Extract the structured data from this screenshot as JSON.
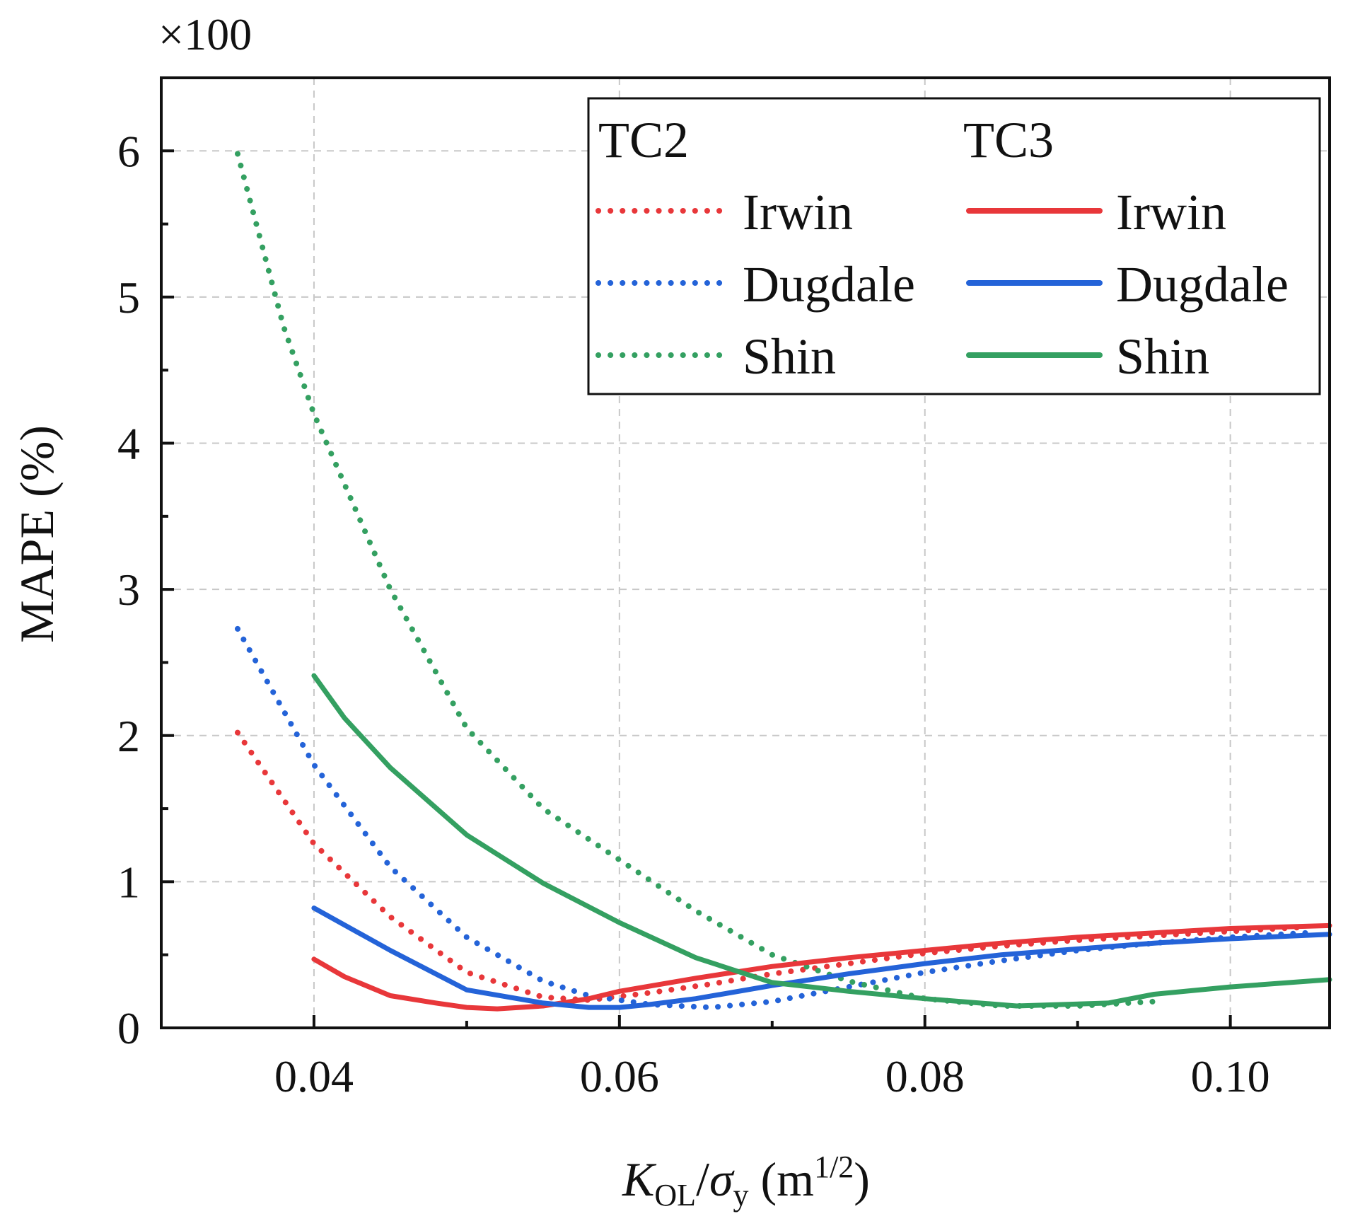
{
  "chart_data": {
    "type": "line",
    "title": "",
    "xlabel": {
      "italic_main": "K",
      "sub1": "OL",
      "slash": "/",
      "italic_sigma": "σ",
      "sub2": "y",
      "unit_open": " (m",
      "unit_sup": "1/2",
      "unit_close": ")"
    },
    "ylabel": "MAPE (%)",
    "y_multiplier_label": "×100",
    "xlim": [
      0.03,
      0.1065
    ],
    "ylim": [
      0,
      6.5
    ],
    "x_ticks": [
      0.04,
      0.06,
      0.08,
      0.1
    ],
    "x_tick_labels": [
      "0.04",
      "0.06",
      "0.08",
      "0.10"
    ],
    "x_minor_ticks": [
      0.05,
      0.07,
      0.09
    ],
    "y_ticks": [
      0,
      1,
      2,
      3,
      4,
      5,
      6
    ],
    "y_tick_labels": [
      "0",
      "1",
      "2",
      "3",
      "4",
      "5",
      "6"
    ],
    "y_minor_ticks": [
      0.5,
      1.5,
      2.5,
      3.5,
      4.5,
      5.5
    ],
    "grid": true,
    "legend": {
      "placement": "top-right",
      "group_titles": [
        "TC2",
        "TC3"
      ]
    },
    "colors": {
      "red": "#e8373a",
      "blue": "#2463d8",
      "green": "#34a061"
    },
    "series": [
      {
        "name": "Irwin",
        "group": "TC2",
        "style": "dotted",
        "color": "#e8373a",
        "x": [
          0.035,
          0.04,
          0.045,
          0.05,
          0.055,
          0.058,
          0.062,
          0.066,
          0.07,
          0.075,
          0.08,
          0.085,
          0.09,
          0.095,
          0.1,
          0.105
        ],
        "y": [
          2.02,
          1.26,
          0.76,
          0.38,
          0.21,
          0.19,
          0.24,
          0.3,
          0.37,
          0.44,
          0.51,
          0.56,
          0.6,
          0.63,
          0.66,
          0.69
        ]
      },
      {
        "name": "Dugdale",
        "group": "TC2",
        "style": "dotted",
        "color": "#2463d8",
        "x": [
          0.035,
          0.04,
          0.045,
          0.05,
          0.055,
          0.058,
          0.062,
          0.066,
          0.07,
          0.075,
          0.08,
          0.085,
          0.09,
          0.095,
          0.1,
          0.105
        ],
        "y": [
          2.73,
          1.8,
          1.1,
          0.62,
          0.32,
          0.22,
          0.16,
          0.14,
          0.18,
          0.28,
          0.38,
          0.46,
          0.53,
          0.58,
          0.62,
          0.65
        ]
      },
      {
        "name": "Shin",
        "group": "TC2",
        "style": "dotted",
        "color": "#34a061",
        "x": [
          0.035,
          0.038,
          0.04,
          0.045,
          0.05,
          0.055,
          0.06,
          0.065,
          0.07,
          0.075,
          0.08,
          0.085,
          0.09,
          0.095
        ],
        "y": [
          5.98,
          4.8,
          4.2,
          3.0,
          2.05,
          1.5,
          1.15,
          0.8,
          0.5,
          0.32,
          0.2,
          0.15,
          0.15,
          0.18
        ]
      },
      {
        "name": "Irwin",
        "group": "TC3",
        "style": "solid",
        "color": "#e8373a",
        "x": [
          0.04,
          0.042,
          0.045,
          0.048,
          0.05,
          0.052,
          0.055,
          0.058,
          0.06,
          0.065,
          0.07,
          0.075,
          0.08,
          0.085,
          0.09,
          0.095,
          0.1,
          0.1065
        ],
        "y": [
          0.47,
          0.35,
          0.22,
          0.17,
          0.14,
          0.13,
          0.15,
          0.2,
          0.25,
          0.34,
          0.42,
          0.48,
          0.53,
          0.58,
          0.62,
          0.65,
          0.68,
          0.7
        ]
      },
      {
        "name": "Dugdale",
        "group": "TC3",
        "style": "solid",
        "color": "#2463d8",
        "x": [
          0.04,
          0.045,
          0.05,
          0.055,
          0.058,
          0.06,
          0.062,
          0.065,
          0.07,
          0.075,
          0.08,
          0.085,
          0.09,
          0.095,
          0.1,
          0.1065
        ],
        "y": [
          0.82,
          0.53,
          0.26,
          0.17,
          0.14,
          0.14,
          0.16,
          0.2,
          0.29,
          0.37,
          0.44,
          0.5,
          0.54,
          0.58,
          0.61,
          0.64
        ]
      },
      {
        "name": "Shin",
        "group": "TC3",
        "style": "solid",
        "color": "#34a061",
        "x": [
          0.04,
          0.042,
          0.045,
          0.05,
          0.055,
          0.06,
          0.065,
          0.07,
          0.075,
          0.08,
          0.086,
          0.092,
          0.095,
          0.1,
          0.1065
        ],
        "y": [
          2.41,
          2.12,
          1.78,
          1.32,
          0.99,
          0.72,
          0.48,
          0.31,
          0.25,
          0.2,
          0.15,
          0.17,
          0.23,
          0.28,
          0.33
        ]
      }
    ]
  }
}
